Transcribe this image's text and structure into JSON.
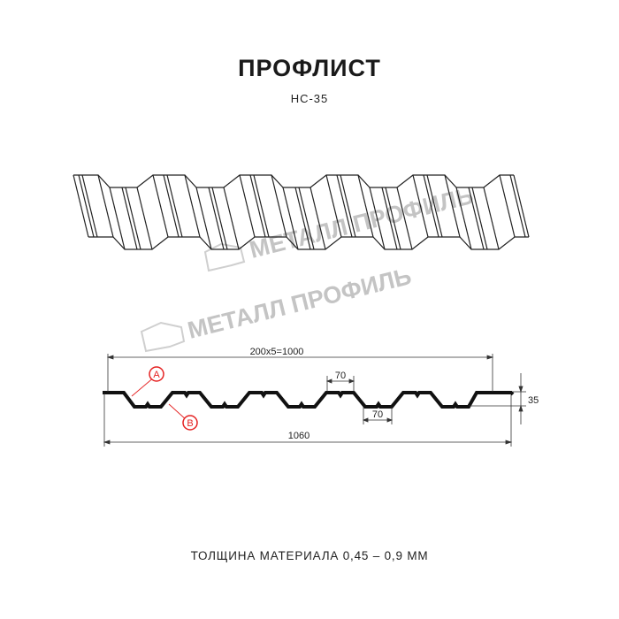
{
  "header": {
    "title": "ПРОФЛИСТ",
    "model": "НС-35"
  },
  "watermark": {
    "text": "МЕТАЛЛ ПРОФИЛЬ",
    "color": "#c8c8c8"
  },
  "drawing": {
    "dim_pitch_total": "200x5=1000",
    "dim_crest": "70",
    "dim_trough": "70",
    "dim_height": "35",
    "dim_overall": "1060",
    "marker_a": "A",
    "marker_b": "B",
    "marker_color": "#e52222"
  },
  "footer": {
    "thickness": "ТОЛЩИНА МАТЕРИАЛА 0,45 – 0,9 ММ"
  }
}
